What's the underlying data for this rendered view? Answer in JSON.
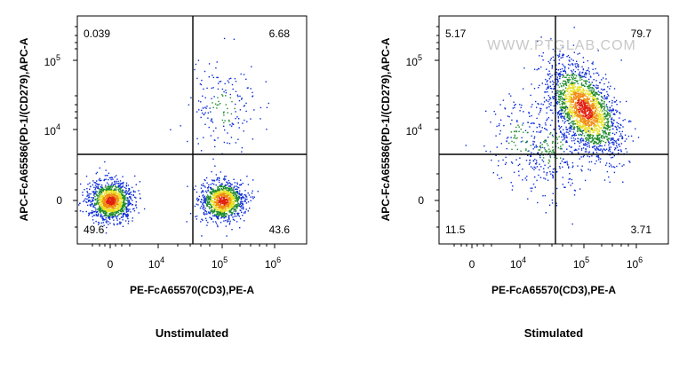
{
  "chart_data": [
    {
      "type": "scatter",
      "plot_style": "pseudocolor flow cytometry density dot plot with quadrant gates",
      "caption": "Unstimulated",
      "xlabel": "PE-FcA65570(CD3),PE-A",
      "ylabel": "APC-FcA65586(PD-1/(CD279),APC-A",
      "x_ticks": [
        {
          "base": "0",
          "exp": ""
        },
        {
          "base": "10",
          "exp": "4"
        },
        {
          "base": "10",
          "exp": "5"
        },
        {
          "base": "10",
          "exp": "6"
        }
      ],
      "y_ticks": [
        {
          "base": "0",
          "exp": ""
        },
        {
          "base": "10",
          "exp": "4"
        },
        {
          "base": "10",
          "exp": "5"
        }
      ],
      "quadrants": {
        "upper_left": "0.039",
        "upper_right": "6.68",
        "lower_left": "49.6",
        "lower_right": "43.6"
      },
      "populations": [
        {
          "center_x": 0,
          "center_y": 0,
          "spread": "tight",
          "share": 0.496
        },
        {
          "center_x": 100000,
          "center_y": 0,
          "spread": "tight",
          "share": 0.436
        },
        {
          "center_x": 100000,
          "center_y": 20000,
          "spread": "diffuse",
          "share": 0.067
        }
      ]
    },
    {
      "type": "scatter",
      "plot_style": "pseudocolor flow cytometry density dot plot with quadrant gates",
      "caption": "Stimulated",
      "xlabel": "PE-FcA65570(CD3),PE-A",
      "ylabel": "APC-FcA65586(PD-1/(CD279),APC-A",
      "x_ticks": [
        {
          "base": "0",
          "exp": ""
        },
        {
          "base": "10",
          "exp": "4"
        },
        {
          "base": "10",
          "exp": "5"
        },
        {
          "base": "10",
          "exp": "6"
        }
      ],
      "y_ticks": [
        {
          "base": "0",
          "exp": ""
        },
        {
          "base": "10",
          "exp": "4"
        },
        {
          "base": "10",
          "exp": "5"
        }
      ],
      "quadrants": {
        "upper_left": "5.17",
        "upper_right": "79.7",
        "lower_left": "11.5",
        "lower_right": "3.71"
      },
      "populations": [
        {
          "center_x": 100000,
          "center_y": 20000,
          "spread": "elongated",
          "share": 0.797
        },
        {
          "center_x": 30000,
          "center_y": 1000,
          "spread": "diffuse",
          "share": 0.115
        },
        {
          "center_x": 10000,
          "center_y": 3000,
          "spread": "diffuse",
          "share": 0.052
        }
      ]
    }
  ],
  "watermark": "WWW.PTGLAB.COM",
  "density_colors": [
    "#0a2bd8",
    "#1c8a2a",
    "#e8e020",
    "#f08a10",
    "#e02010"
  ]
}
